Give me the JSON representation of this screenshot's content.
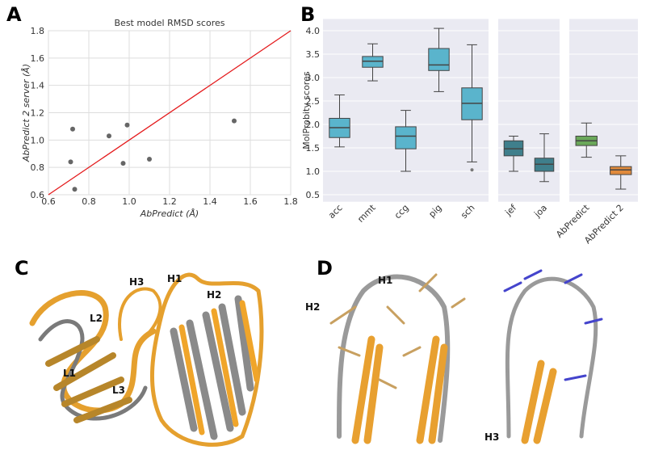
{
  "chart_data": [
    {
      "type": "scatter",
      "panel": "A",
      "title": "Best model RMSD scores",
      "x_label": "AbPredict (Å)",
      "y_label": "AbPredict 2 server (Å)",
      "x": [
        0.71,
        0.72,
        0.73,
        0.9,
        0.97,
        0.99,
        1.1,
        1.52
      ],
      "values": [
        0.84,
        1.08,
        0.64,
        1.03,
        0.83,
        1.11,
        0.86,
        1.14
      ],
      "color": "#666666",
      "diagonal_color": "#e41a1c",
      "xlim": [
        0.6,
        1.8
      ],
      "ylim": [
        0.6,
        1.8
      ],
      "xticks": [
        0.6,
        0.8,
        {
          "value": 1,
          "label": "1.0"
        },
        1.2,
        1.4,
        1.6,
        1.8
      ],
      "yticks": [
        0.6,
        0.8,
        {
          "value": 1,
          "label": "1.0"
        },
        1.2,
        1.4,
        1.6,
        1.8
      ],
      "grid": true
    },
    {
      "type": "box",
      "panel": "B",
      "y_label": "MolProbity scores",
      "ylim": [
        0.35,
        4.25
      ],
      "yticks": [
        0.5,
        {
          "value": 1,
          "label": "1.0"
        },
        1.5,
        {
          "value": 2,
          "label": "2.0"
        },
        2.5,
        {
          "value": 3,
          "label": "3.0"
        },
        3.5,
        {
          "value": 4,
          "label": "4.0"
        }
      ],
      "grid": true,
      "facets": [
        {
          "boxes": [
            {
              "name": "acc",
              "color": "#5ab4cc",
              "whisker_low": 1.52,
              "q1": 1.72,
              "median": 1.93,
              "q3": 2.13,
              "whisker_high": 2.63
            },
            {
              "name": "mmt",
              "color": "#5ab4cc",
              "whisker_low": 2.93,
              "q1": 3.22,
              "median": 3.35,
              "q3": 3.45,
              "whisker_high": 3.72
            },
            {
              "name": "ccg",
              "color": "#5ab4cc",
              "whisker_low": 1.0,
              "q1": 1.48,
              "median": 1.75,
              "q3": 1.95,
              "whisker_high": 2.3
            },
            {
              "name": "pig",
              "color": "#5ab4cc",
              "whisker_low": 2.7,
              "q1": 3.15,
              "median": 3.27,
              "q3": 3.62,
              "whisker_high": 4.05
            },
            {
              "name": "sch",
              "color": "#5ab4cc",
              "whisker_low": 1.2,
              "q1": 2.1,
              "median": 2.45,
              "q3": 2.78,
              "whisker_high": 3.7,
              "outliers": [
                1.03
              ]
            }
          ]
        },
        {
          "boxes": [
            {
              "name": "jef",
              "color": "#3f7f8c",
              "whisker_low": 1.0,
              "q1": 1.33,
              "median": 1.48,
              "q3": 1.65,
              "whisker_high": 1.75
            },
            {
              "name": "joa",
              "color": "#3f7f8c",
              "whisker_low": 0.78,
              "q1": 1.0,
              "median": 1.15,
              "q3": 1.28,
              "whisker_high": 1.8
            }
          ]
        },
        {
          "boxes": [
            {
              "name": "AbPredict",
              "color": "#6aa85a",
              "whisker_low": 1.3,
              "q1": 1.55,
              "median": 1.65,
              "q3": 1.75,
              "whisker_high": 2.03
            },
            {
              "name": "AbPredict 2",
              "color": "#e08a3c",
              "whisker_low": 0.62,
              "q1": 0.93,
              "median": 1.03,
              "q3": 1.1,
              "whisker_high": 1.33
            }
          ]
        }
      ]
    }
  ],
  "panel_c": {
    "letter": "C",
    "labels": [
      "H3",
      "H1",
      "H2",
      "L2",
      "L1",
      "L3"
    ]
  },
  "panel_d": {
    "letter": "D",
    "labels": [
      "H1",
      "H2",
      "H3"
    ]
  }
}
